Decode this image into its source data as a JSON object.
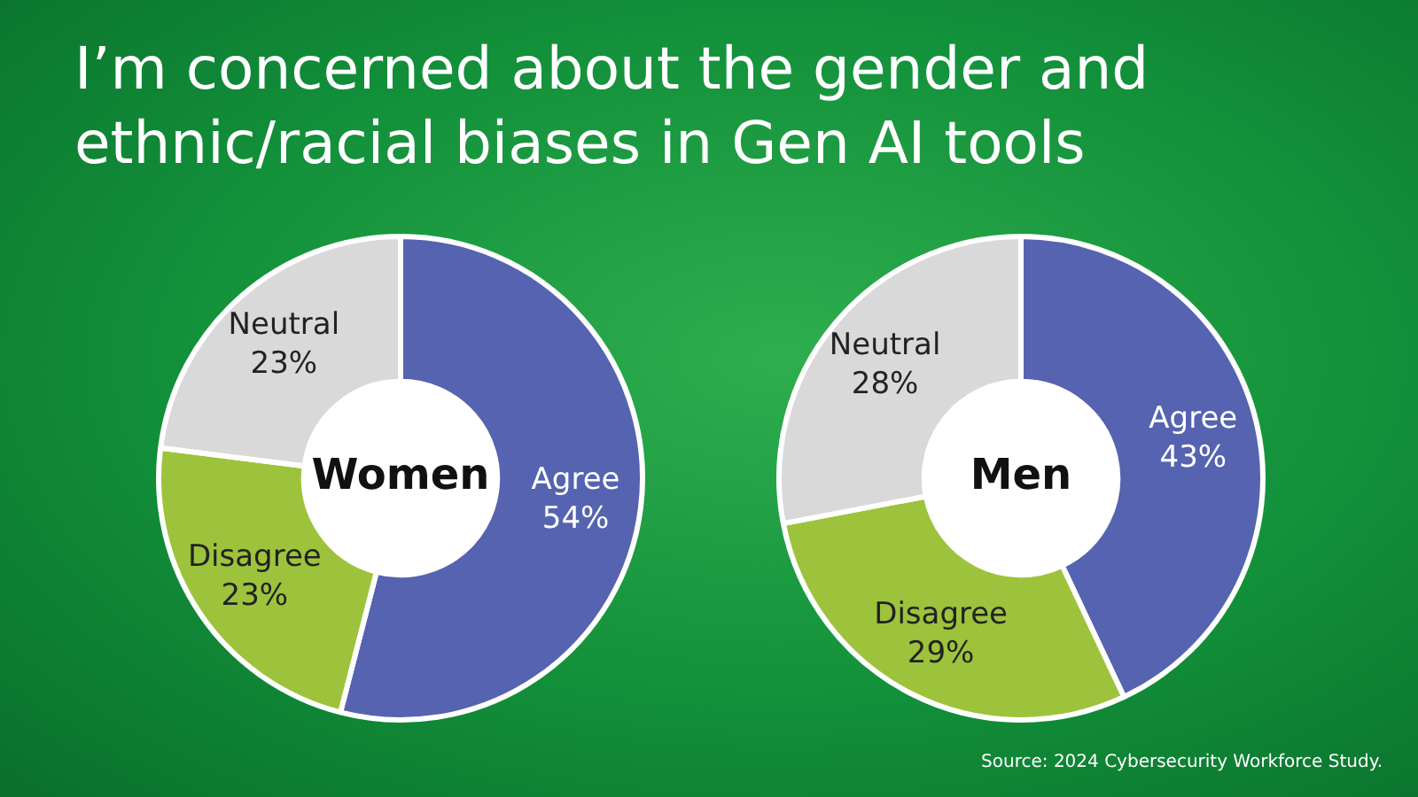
{
  "chart_data": [
    {
      "type": "other",
      "title": "I’m concerned about the gender and ethnic/racial biases in Gen AI tools",
      "annotations": [
        "Source: 2024 Cybersecurity Workforce Study."
      ]
    },
    {
      "type": "donut",
      "title": "Women",
      "categories": [
        "Agree",
        "Disagree",
        "Neutral"
      ],
      "values": [
        54,
        23,
        23
      ],
      "value_labels": [
        "54%",
        "23%",
        "23%"
      ],
      "colors": [
        "#5563b0",
        "#9dc33c",
        "#d9d9d9"
      ],
      "legend": false
    },
    {
      "type": "donut",
      "title": "Men",
      "categories": [
        "Agree",
        "Disagree",
        "Neutral"
      ],
      "values": [
        43,
        29,
        28
      ],
      "value_labels": [
        "43%",
        "29%",
        "28%"
      ],
      "colors": [
        "#5563b0",
        "#9dc33c",
        "#d9d9d9"
      ],
      "legend": false
    }
  ]
}
